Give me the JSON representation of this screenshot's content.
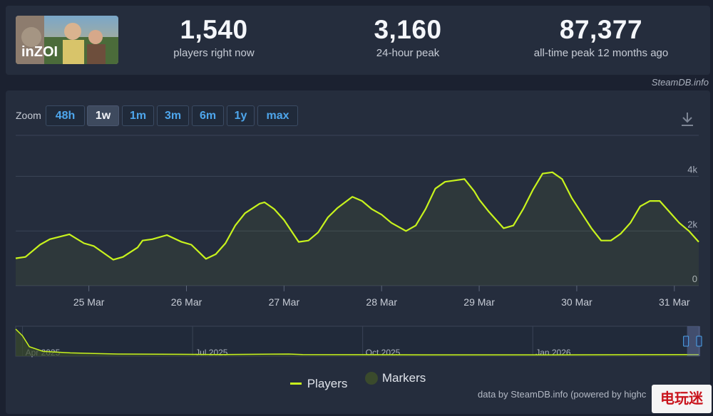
{
  "header": {
    "game_logo_text": "inZOI",
    "stats": [
      {
        "value": "1,540",
        "label": "players right now"
      },
      {
        "value": "3,160",
        "label": "24-hour peak"
      },
      {
        "value": "87,377",
        "label": "all-time peak 12 months ago"
      }
    ],
    "credit": "SteamDB.info"
  },
  "zoom": {
    "label": "Zoom",
    "buttons": [
      "48h",
      "1w",
      "1m",
      "3m",
      "6m",
      "1y",
      "max"
    ],
    "active": "1w"
  },
  "icons": {
    "download": "download-icon"
  },
  "colors": {
    "players_line": "#c8f31d",
    "markers": "#3a4a2c",
    "accent_link": "#4ea6ec"
  },
  "chart_data": {
    "type": "line",
    "title": "",
    "xlabel": "",
    "ylabel": "",
    "x_ticks": [
      "25 Mar",
      "26 Mar",
      "27 Mar",
      "28 Mar",
      "29 Mar",
      "30 Mar",
      "31 Mar"
    ],
    "y_ticks": [
      "0",
      "2k",
      "4k"
    ],
    "ylim": [
      0,
      5500
    ],
    "xlim_days": [
      24.25,
      31.25
    ],
    "grid": true,
    "series": [
      {
        "name": "Players",
        "points": [
          [
            24.25,
            1000
          ],
          [
            24.35,
            1050
          ],
          [
            24.5,
            1500
          ],
          [
            24.6,
            1700
          ],
          [
            24.8,
            1880
          ],
          [
            24.95,
            1550
          ],
          [
            25.05,
            1450
          ],
          [
            25.25,
            950
          ],
          [
            25.35,
            1050
          ],
          [
            25.5,
            1400
          ],
          [
            25.55,
            1650
          ],
          [
            25.65,
            1700
          ],
          [
            25.8,
            1850
          ],
          [
            25.95,
            1600
          ],
          [
            26.05,
            1500
          ],
          [
            26.2,
            980
          ],
          [
            26.3,
            1150
          ],
          [
            26.4,
            1550
          ],
          [
            26.5,
            2200
          ],
          [
            26.6,
            2650
          ],
          [
            26.75,
            3000
          ],
          [
            26.8,
            3050
          ],
          [
            26.9,
            2800
          ],
          [
            27.0,
            2400
          ],
          [
            27.15,
            1600
          ],
          [
            27.25,
            1650
          ],
          [
            27.35,
            1950
          ],
          [
            27.45,
            2500
          ],
          [
            27.55,
            2850
          ],
          [
            27.7,
            3250
          ],
          [
            27.8,
            3100
          ],
          [
            27.9,
            2800
          ],
          [
            28.0,
            2600
          ],
          [
            28.1,
            2300
          ],
          [
            28.25,
            2000
          ],
          [
            28.35,
            2200
          ],
          [
            28.45,
            2800
          ],
          [
            28.55,
            3550
          ],
          [
            28.65,
            3800
          ],
          [
            28.85,
            3900
          ],
          [
            28.95,
            3450
          ],
          [
            29.0,
            3150
          ],
          [
            29.1,
            2700
          ],
          [
            29.25,
            2100
          ],
          [
            29.35,
            2200
          ],
          [
            29.45,
            2800
          ],
          [
            29.55,
            3500
          ],
          [
            29.65,
            4100
          ],
          [
            29.75,
            4150
          ],
          [
            29.85,
            3900
          ],
          [
            29.95,
            3200
          ],
          [
            30.05,
            2650
          ],
          [
            30.15,
            2100
          ],
          [
            30.25,
            1650
          ],
          [
            30.35,
            1650
          ],
          [
            30.45,
            1900
          ],
          [
            30.55,
            2300
          ],
          [
            30.65,
            2900
          ],
          [
            30.75,
            3100
          ],
          [
            30.85,
            3100
          ],
          [
            30.95,
            2700
          ],
          [
            31.05,
            2300
          ],
          [
            31.15,
            2000
          ],
          [
            31.25,
            1600
          ]
        ]
      }
    ],
    "navigator": {
      "labels": [
        "Apr 2025",
        "Jul 2025",
        "Oct 2025",
        "Jan 2026"
      ],
      "series": [
        [
          0,
          1.0
        ],
        [
          0.01,
          0.75
        ],
        [
          0.02,
          0.35
        ],
        [
          0.04,
          0.18
        ],
        [
          0.08,
          0.12
        ],
        [
          0.15,
          0.08
        ],
        [
          0.3,
          0.06
        ],
        [
          0.4,
          0.08
        ],
        [
          0.42,
          0.06
        ],
        [
          0.6,
          0.05
        ],
        [
          0.8,
          0.05
        ],
        [
          1.0,
          0.06
        ]
      ],
      "selected_range": [
        0.985,
        1.0
      ]
    },
    "legend": [
      "Players",
      "Markers"
    ],
    "legend_position": "bottom-center"
  },
  "footer": {
    "credit": "data by SteamDB.info (powered by highc"
  },
  "watermark": {
    "text": "电玩迷"
  }
}
